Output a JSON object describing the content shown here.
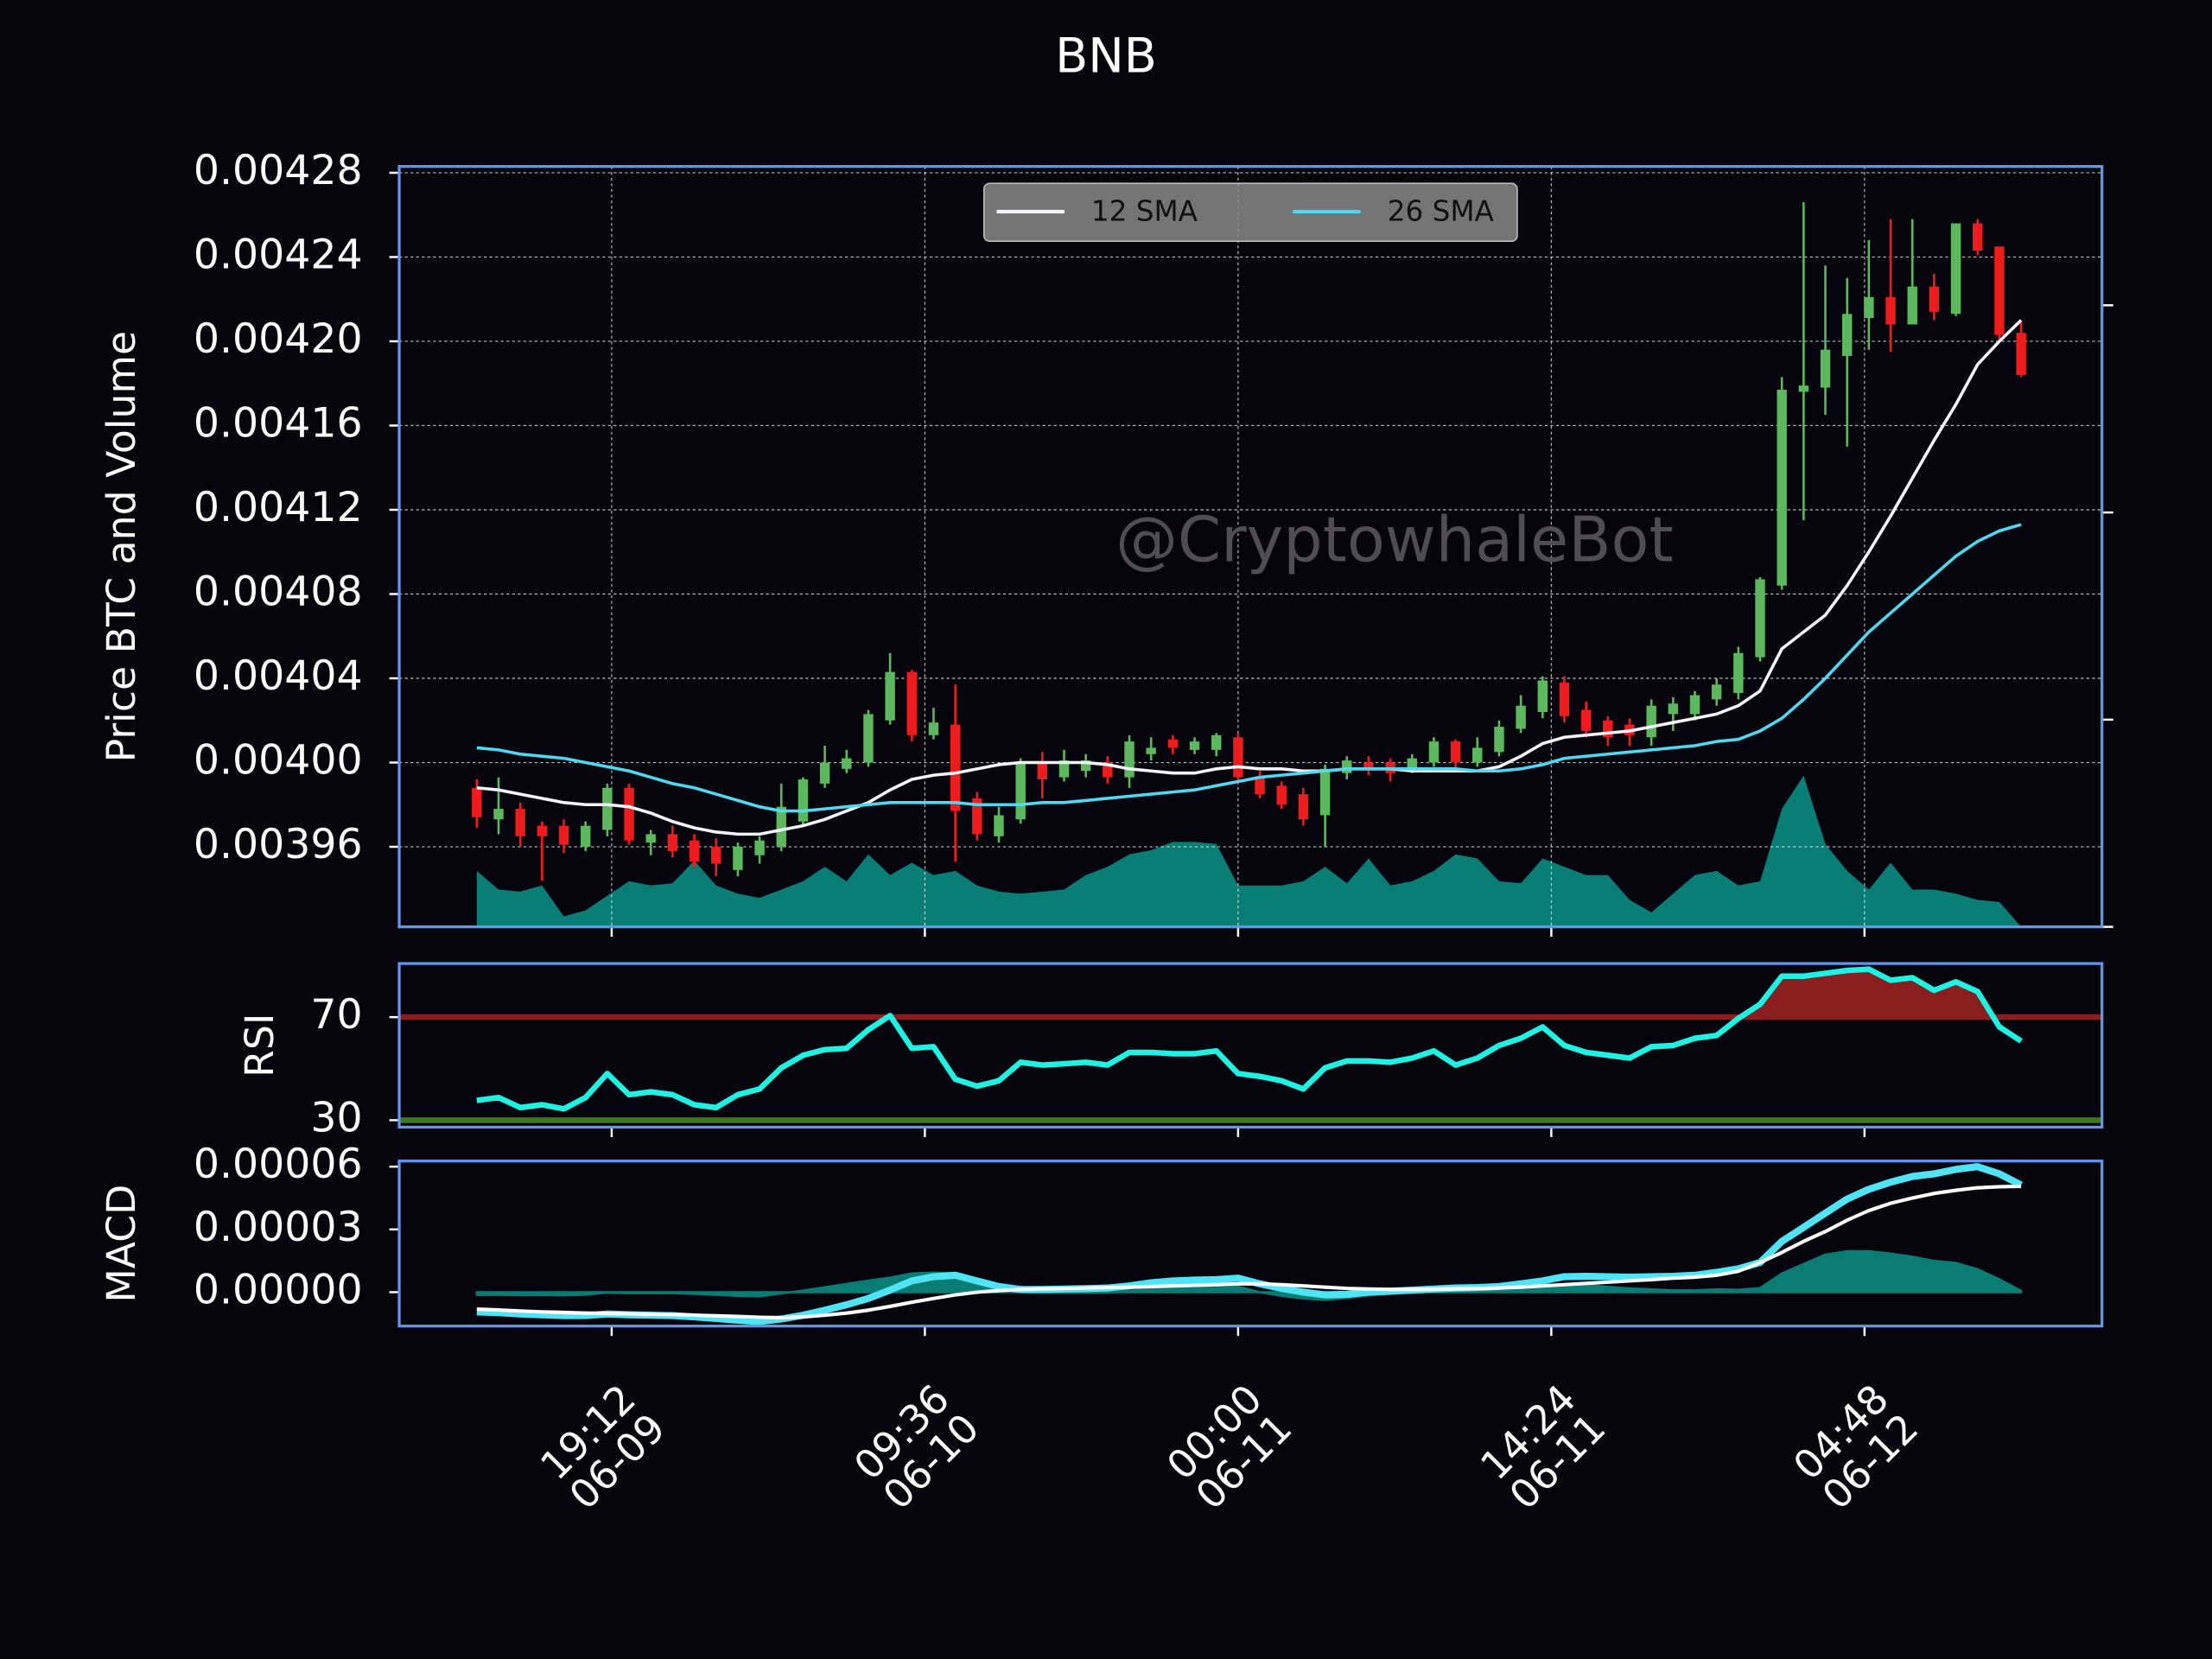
{
  "chart_data": [
    {
      "type": "candlestick",
      "title": "BNB",
      "ylabel": "Price BTC and Volume",
      "watermark": "@CryptowhaleBot",
      "x": [
        "06-09 13:00",
        "06-09 14:00",
        "06-09 15:00",
        "06-09 16:00",
        "06-09 17:00",
        "06-09 18:00",
        "06-09 19:00",
        "06-09 20:00",
        "06-09 21:00",
        "06-09 22:00",
        "06-09 23:00",
        "06-10 00:00",
        "06-10 01:00",
        "06-10 02:00",
        "06-10 03:00",
        "06-10 04:00",
        "06-10 05:00",
        "06-10 06:00",
        "06-10 07:00",
        "06-10 08:00",
        "06-10 09:00",
        "06-10 10:00",
        "06-10 11:00",
        "06-10 12:00",
        "06-10 13:00",
        "06-10 14:00",
        "06-10 15:00",
        "06-10 16:00",
        "06-10 17:00",
        "06-10 18:00",
        "06-10 19:00",
        "06-10 20:00",
        "06-10 21:00",
        "06-10 22:00",
        "06-10 23:00",
        "06-11 00:00",
        "06-11 01:00",
        "06-11 02:00",
        "06-11 03:00",
        "06-11 04:00",
        "06-11 05:00",
        "06-11 06:00",
        "06-11 07:00",
        "06-11 08:00",
        "06-11 09:00",
        "06-11 10:00",
        "06-11 11:00",
        "06-11 12:00",
        "06-11 13:00",
        "06-11 14:00",
        "06-11 15:00",
        "06-11 16:00",
        "06-11 17:00",
        "06-11 18:00",
        "06-11 19:00",
        "06-11 20:00",
        "06-11 21:00",
        "06-11 22:00",
        "06-11 23:00",
        "06-12 00:00",
        "06-12 01:00",
        "06-12 02:00",
        "06-12 03:00",
        "06-12 04:00",
        "06-12 05:00",
        "06-12 06:00",
        "06-12 07:00",
        "06-12 08:00",
        "06-12 09:00",
        "06-12 10:00",
        "06-12 11:00",
        "06-12 12:00"
      ],
      "open": [
        0.003988,
        0.003973,
        0.003978,
        0.00397,
        0.00397,
        0.00396,
        0.003968,
        0.003988,
        0.003962,
        0.003966,
        0.003963,
        0.00396,
        0.003949,
        0.003956,
        0.00396,
        0.003972,
        0.00399,
        0.003997,
        0.004,
        0.00402,
        0.004043,
        0.004013,
        0.004018,
        0.003983,
        0.003965,
        0.003973,
        0.004,
        0.003993,
        0.003996,
        0.004,
        0.003993,
        0.004004,
        0.004011,
        0.004006,
        0.004006,
        0.004012,
        0.003993,
        0.003989,
        0.003985,
        0.003975,
        0.003995,
        0.004,
        0.004,
        0.003997,
        0.004,
        0.00401,
        0.004,
        0.004005,
        0.004016,
        0.004024,
        0.004038,
        0.004025,
        0.00402,
        0.004018,
        0.004012,
        0.004023,
        0.004023,
        0.00403,
        0.004033,
        0.00405,
        0.004084,
        0.004176,
        0.004178,
        0.004193,
        0.004211,
        0.004221,
        0.004208,
        0.004226,
        0.004213,
        0.004256,
        0.004245,
        0.004204
      ],
      "high": [
        0.003992,
        0.003993,
        0.003981,
        0.003972,
        0.003973,
        0.003972,
        0.00399,
        0.00399,
        0.003968,
        0.00397,
        0.003966,
        0.003964,
        0.003962,
        0.003965,
        0.00399,
        0.003993,
        0.004008,
        0.004006,
        0.004025,
        0.004052,
        0.004044,
        0.004026,
        0.004037,
        0.003986,
        0.003979,
        0.004002,
        0.004005,
        0.004006,
        0.004004,
        0.004003,
        0.004013,
        0.004012,
        0.004013,
        0.004012,
        0.004014,
        0.004014,
        0.003996,
        0.003991,
        0.003988,
        0.003999,
        0.004003,
        0.004003,
        0.004002,
        0.004004,
        0.004012,
        0.004011,
        0.004012,
        0.00402,
        0.004032,
        0.004041,
        0.004041,
        0.004029,
        0.004022,
        0.004021,
        0.00403,
        0.004031,
        0.004034,
        0.00404,
        0.004055,
        0.004088,
        0.004183,
        0.004266,
        0.004236,
        0.00423,
        0.004248,
        0.004258,
        0.004258,
        0.004232,
        0.004256,
        0.004258,
        0.004245,
        0.004209
      ],
      "low": [
        0.003969,
        0.003966,
        0.00396,
        0.003944,
        0.003957,
        0.003958,
        0.003965,
        0.003961,
        0.003956,
        0.003955,
        0.00395,
        0.003946,
        0.003946,
        0.003952,
        0.003958,
        0.00397,
        0.003988,
        0.003995,
        0.003998,
        0.004018,
        0.00401,
        0.004011,
        0.003953,
        0.003963,
        0.003962,
        0.003971,
        0.003983,
        0.003991,
        0.003993,
        0.00399,
        0.003988,
        0.004001,
        0.004004,
        0.004004,
        0.004003,
        0.00399,
        0.003983,
        0.003978,
        0.00397,
        0.00396,
        0.003992,
        0.003994,
        0.003991,
        0.003995,
        0.003998,
        0.003996,
        0.003998,
        0.004003,
        0.004014,
        0.004021,
        0.004019,
        0.004012,
        0.004008,
        0.004008,
        0.004008,
        0.004015,
        0.00402,
        0.004027,
        0.00403,
        0.004048,
        0.004082,
        0.004115,
        0.004165,
        0.00415,
        0.004196,
        0.004195,
        0.004208,
        0.00421,
        0.004212,
        0.004241,
        0.0042,
        0.004183
      ],
      "close": [
        0.003974,
        0.003978,
        0.003965,
        0.003965,
        0.003961,
        0.00397,
        0.003988,
        0.003963,
        0.003966,
        0.003958,
        0.003953,
        0.003952,
        0.00396,
        0.003963,
        0.003979,
        0.003992,
        0.004,
        0.004002,
        0.004023,
        0.004043,
        0.004013,
        0.004019,
        0.003977,
        0.003966,
        0.003975,
        0.004,
        0.003992,
        0.004001,
        0.004001,
        0.003993,
        0.00401,
        0.004007,
        0.004007,
        0.00401,
        0.004013,
        0.003993,
        0.003985,
        0.00398,
        0.003973,
        0.003997,
        0.004001,
        0.003997,
        0.003995,
        0.004002,
        0.00401,
        0.004,
        0.004007,
        0.004017,
        0.004027,
        0.004039,
        0.004022,
        0.004015,
        0.004012,
        0.004013,
        0.004027,
        0.004028,
        0.004032,
        0.004037,
        0.004052,
        0.004087,
        0.004177,
        0.004179,
        0.004196,
        0.004213,
        0.004221,
        0.004208,
        0.004226,
        0.004214,
        0.004256,
        0.004243,
        0.004203,
        0.004184
      ],
      "up_color": "#5cb85c",
      "down_color": "#ee1c1c",
      "series": [
        {
          "name": "12 SMA",
          "color": "#f4f4ff",
          "values": [
            0.003988,
            0.003987,
            0.003985,
            0.003983,
            0.003981,
            0.00398,
            0.00398,
            0.003979,
            0.003976,
            0.003972,
            0.003969,
            0.003967,
            0.003966,
            0.003966,
            0.003968,
            0.00397,
            0.003973,
            0.003977,
            0.003981,
            0.003987,
            0.003992,
            0.003994,
            0.003995,
            0.003997,
            0.003999,
            0.004,
            0.004,
            0.004,
            0.004,
            0.003999,
            0.003997,
            0.003996,
            0.003995,
            0.003995,
            0.003997,
            0.003998,
            0.003997,
            0.003997,
            0.003996,
            0.003996,
            0.003997,
            0.003997,
            0.003997,
            0.003996,
            0.003996,
            0.003996,
            0.003996,
            0.003998,
            0.004003,
            0.004009,
            0.004012,
            0.004013,
            0.004014,
            0.004015,
            0.004017,
            0.004019,
            0.004021,
            0.004023,
            0.004027,
            0.004034,
            0.004054,
            0.004062,
            0.00407,
            0.004084,
            0.0041,
            0.004117,
            0.004135,
            0.004153,
            0.00417,
            0.004189,
            0.0042,
            0.00421
          ]
        },
        {
          "name": "26 SMA",
          "color": "#4fd8f2",
          "values": [
            0.004007,
            0.004006,
            0.004004,
            0.004003,
            0.004002,
            0.004,
            0.003998,
            0.003996,
            0.003993,
            0.00399,
            0.003988,
            0.003985,
            0.003982,
            0.003979,
            0.003977,
            0.003977,
            0.003978,
            0.003979,
            0.00398,
            0.003981,
            0.003981,
            0.003981,
            0.003981,
            0.00398,
            0.00398,
            0.00398,
            0.003981,
            0.003981,
            0.003982,
            0.003983,
            0.003984,
            0.003985,
            0.003986,
            0.003987,
            0.003989,
            0.003991,
            0.003993,
            0.003994,
            0.003995,
            0.003996,
            0.003997,
            0.003997,
            0.003997,
            0.003997,
            0.003997,
            0.003997,
            0.003996,
            0.003996,
            0.003997,
            0.003999,
            0.004002,
            0.004003,
            0.004004,
            0.004005,
            0.004006,
            0.004007,
            0.004008,
            0.00401,
            0.004011,
            0.004015,
            0.004021,
            0.00403,
            0.00404,
            0.004051,
            0.004062,
            0.004071,
            0.00408,
            0.004089,
            0.004098,
            0.004105,
            0.00411,
            0.004113
          ]
        }
      ],
      "volume": {
        "color": "#08857c",
        "axis": "y2",
        "values": [
          0.27,
          0.18,
          0.17,
          0.2,
          0.05,
          0.08,
          0.15,
          0.22,
          0.2,
          0.21,
          0.32,
          0.2,
          0.16,
          0.14,
          0.18,
          0.22,
          0.29,
          0.22,
          0.35,
          0.25,
          0.31,
          0.25,
          0.27,
          0.2,
          0.17,
          0.16,
          0.17,
          0.18,
          0.25,
          0.29,
          0.35,
          0.37,
          0.41,
          0.41,
          0.4,
          0.2,
          0.2,
          0.2,
          0.22,
          0.29,
          0.21,
          0.33,
          0.2,
          0.22,
          0.27,
          0.35,
          0.33,
          0.22,
          0.21,
          0.33,
          0.29,
          0.25,
          0.25,
          0.13,
          0.07,
          0.16,
          0.25,
          0.27,
          0.2,
          0.22,
          0.57,
          0.73,
          0.4,
          0.27,
          0.18,
          0.31,
          0.18,
          0.18,
          0.16,
          0.13,
          0.12,
          0
        ]
      },
      "xlim": [
        "06-09 09:26",
        "06-12 15:43"
      ],
      "xticks": [
        {
          "value": "06-09 19:12",
          "label": "19:12\n06-09"
        },
        {
          "value": "06-10 09:36",
          "label": "09:36\n06-10"
        },
        {
          "value": "06-11 00:00",
          "label": "00:00\n06-11"
        },
        {
          "value": "06-11 14:24",
          "label": "14:24\n06-11"
        },
        {
          "value": "06-12 04:48",
          "label": "04:48\n06-12"
        }
      ],
      "ylim": [
        0.003922,
        0.004283
      ],
      "yticks": [
        0.00396,
        {
          "value": 0.004,
          "label": "0.00400"
        },
        0.00404,
        0.00408,
        0.00412,
        0.00416,
        {
          "value": 0.0042,
          "label": "0.00420"
        },
        0.00424,
        0.00428
      ],
      "y2lim": [
        0,
        3.67
      ],
      "y2ticks": [
        0,
        1,
        2,
        3
      ],
      "grid": true,
      "legend": "upper center"
    },
    {
      "type": "rsi",
      "ylabel": "RSI",
      "color": "#1ef2e2",
      "values": [
        37.7,
        38.8,
        34.9,
        36.0,
        34.4,
        38.8,
        48.1,
        39.9,
        41.0,
        39.9,
        36.0,
        34.9,
        39.9,
        42.1,
        50.3,
        55.2,
        57.4,
        57.9,
        65.1,
        70.6,
        57.9,
        58.5,
        45.9,
        43.2,
        45.3,
        52.5,
        51.4,
        51.9,
        52.5,
        51.4,
        56.3,
        56.3,
        55.8,
        55.8,
        56.9,
        48.1,
        47.0,
        45.3,
        42.1,
        50.3,
        53.0,
        53.0,
        52.5,
        54.1,
        56.9,
        51.4,
        54.1,
        59.0,
        61.8,
        66.2,
        59.0,
        56.3,
        55.2,
        54.1,
        58.5,
        59.0,
        61.8,
        62.9,
        69.5,
        75.0,
        85.9,
        85.9,
        87.0,
        88.1,
        88.6,
        84.3,
        85.3,
        80.4,
        83.7,
        79.9,
        66.2,
        60.7
      ],
      "levels": [
        {
          "value": 70,
          "color": "#8b1e1e",
          "fill": "above"
        },
        {
          "value": 30,
          "color": "#3b7a1a"
        }
      ],
      "ylim": [
        27.3,
        90.8
      ],
      "yticks": [
        30,
        70
      ]
    },
    {
      "type": "macd",
      "ylabel": "MACD",
      "macd": {
        "color": "#4ee4f6",
        "values": [
          -9.4e-06,
          -9.8e-06,
          -1.04e-05,
          -1.08e-05,
          -1.12e-05,
          -1.12e-05,
          -1.04e-05,
          -1.08e-05,
          -1.1e-05,
          -1.12e-05,
          -1.18e-05,
          -1.26e-05,
          -1.34e-05,
          -1.4e-05,
          -1.28e-05,
          -1.1e-05,
          -8.6e-06,
          -6e-06,
          -3e-06,
          1e-06,
          5.4e-06,
          7.4e-06,
          8.1e-06,
          5.4e-06,
          2.7e-06,
          1.3e-06,
          1.3e-06,
          1.5e-06,
          1.7e-06,
          2e-06,
          3e-06,
          4.5e-06,
          5.4e-06,
          5.8e-06,
          6e-06,
          6.7e-06,
          4e-06,
          1.8e-06,
          0.0,
          -1.3e-06,
          -1e-06,
          0.0,
          5e-07,
          1e-06,
          1.5e-06,
          2e-06,
          2.2e-06,
          2.7e-06,
          4e-06,
          5.4e-06,
          7.4e-06,
          7.6e-06,
          7.4e-06,
          7.2e-06,
          7.4e-06,
          7.6e-06,
          8.1e-06,
          9.5e-06,
          1.12e-05,
          1.42e-05,
          2.43e-05,
          3.1e-05,
          3.78e-05,
          4.45e-05,
          4.92e-05,
          5.26e-05,
          5.53e-05,
          5.66e-05,
          5.87e-05,
          6e-05,
          5.66e-05,
          5.12e-05
        ]
      },
      "signal": {
        "color": "#ffffff",
        "values": [
          -8.1e-06,
          -8.5e-06,
          -9e-06,
          -9.4e-06,
          -9.7e-06,
          -1e-05,
          -1.02e-05,
          -1.03e-05,
          -1.05e-05,
          -1.07e-05,
          -1.1e-05,
          -1.13e-05,
          -1.16e-05,
          -1.2e-05,
          -1.22e-05,
          -1.18e-05,
          -1.1e-05,
          -1e-05,
          -8.6e-06,
          -6.8e-06,
          -4.8e-06,
          -3e-06,
          -1.3e-06,
          0.0,
          8e-07,
          1.3e-06,
          1.6e-06,
          1.8e-06,
          2e-06,
          2.2e-06,
          2.4e-06,
          2.7e-06,
          3e-06,
          3.3e-06,
          3.6e-06,
          4e-06,
          4e-06,
          3.6e-06,
          3e-06,
          2.4e-06,
          1.8e-06,
          1.5e-06,
          1.3e-06,
          1.3e-06,
          1.4e-06,
          1.6e-06,
          1.8e-06,
          2e-06,
          2.4e-06,
          3e-06,
          3.6e-06,
          4.2e-06,
          4.8e-06,
          5.4e-06,
          6e-06,
          6.7e-06,
          7.2e-06,
          8.1e-06,
          1e-05,
          1.42e-05,
          1.9e-05,
          2.43e-05,
          2.9e-05,
          3.44e-05,
          3.9e-05,
          4.25e-05,
          4.5e-05,
          4.72e-05,
          4.87e-05,
          4.99e-05,
          5.04e-05,
          5.06e-05
        ]
      },
      "histogram": {
        "color": "#0a8a80",
        "values": [
          -1.3e-06,
          -1.3e-06,
          -1.4e-06,
          -1.4e-06,
          -1.5e-06,
          -1.2e-06,
          -2e-07,
          -5e-07,
          -5e-07,
          -5e-07,
          -8e-07,
          -1.3e-06,
          -1.8e-06,
          -2e-06,
          -6e-07,
          8e-07,
          2.4e-06,
          4e-06,
          5.6e-06,
          7e-06,
          9e-06,
          9.4e-06,
          9e-06,
          5.4e-06,
          1.9e-06,
          0.0,
          -3e-07,
          -3e-07,
          -3e-07,
          -2e-07,
          6e-07,
          1.8e-06,
          2.4e-06,
          2.5e-06,
          2.4e-06,
          2.7e-06,
          0.0,
          -1.8e-06,
          -3e-06,
          -3.7e-06,
          -2.8e-06,
          -1.5e-06,
          -8e-07,
          -3e-07,
          1e-07,
          4e-07,
          4e-07,
          7e-07,
          1.6e-06,
          2.4e-06,
          3.8e-06,
          3.4e-06,
          2.6e-06,
          1.8e-06,
          1.4e-06,
          9e-07,
          9e-07,
          1.4e-06,
          1.2e-06,
          2e-06,
          9e-06,
          1.35e-05,
          1.8e-05,
          1.96e-05,
          1.96e-05,
          1.85e-05,
          1.7e-05,
          1.5e-05,
          1.4e-05,
          1.1e-05,
          6.2e-06,
          6e-07
        ]
      },
      "ylim": [
        -1.62e-05,
        6.27e-05
      ],
      "yticks": [
        6e-05,
        3e-05,
        {
          "value": 0,
          "label": "0.00000"
        }
      ]
    }
  ]
}
